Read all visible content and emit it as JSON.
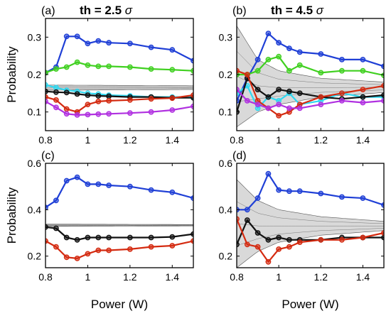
{
  "chart_data": [
    {
      "type": "line",
      "panel_label": "(a)",
      "title_text": "th = 2.5",
      "title_symbol": "σ",
      "ylabel": "Probability",
      "xlabel": "",
      "xlim": [
        0.8,
        1.5
      ],
      "ylim": [
        0.05,
        0.35
      ],
      "xticks": [
        0.8,
        1,
        1.2,
        1.4
      ],
      "yticks": [
        0.1,
        0.2,
        0.3
      ],
      "series": [
        {
          "color": "#1f3fd6",
          "x": [
            0.8,
            0.85,
            0.9,
            0.95,
            1.0,
            1.05,
            1.1,
            1.2,
            1.3,
            1.4,
            1.5
          ],
          "y": [
            0.205,
            0.22,
            0.302,
            0.302,
            0.283,
            0.29,
            0.285,
            0.283,
            0.273,
            0.266,
            0.237
          ]
        },
        {
          "color": "#40d020",
          "x": [
            0.8,
            0.85,
            0.9,
            0.95,
            1.0,
            1.05,
            1.1,
            1.2,
            1.3,
            1.4,
            1.5
          ],
          "y": [
            0.205,
            0.215,
            0.22,
            0.233,
            0.225,
            0.222,
            0.222,
            0.22,
            0.215,
            0.213,
            0.21
          ]
        },
        {
          "color": "#30d8f0",
          "x": [
            0.8,
            0.85,
            0.9,
            0.95,
            1.0,
            1.05,
            1.1,
            1.2,
            1.3,
            1.4,
            1.5
          ],
          "y": [
            0.172,
            0.165,
            0.158,
            0.155,
            0.15,
            0.148,
            0.145,
            0.143,
            0.14,
            0.14,
            0.14
          ]
        },
        {
          "color": "#111111",
          "x": [
            0.8,
            0.85,
            0.9,
            0.95,
            1.0,
            1.05,
            1.1,
            1.2,
            1.3,
            1.4,
            1.5
          ],
          "y": [
            0.155,
            0.153,
            0.152,
            0.148,
            0.145,
            0.143,
            0.142,
            0.14,
            0.14,
            0.138,
            0.138
          ]
        },
        {
          "color": "#d42a10",
          "x": [
            0.8,
            0.85,
            0.9,
            0.95,
            1.0,
            1.05,
            1.1,
            1.2,
            1.3,
            1.4,
            1.5
          ],
          "y": [
            0.14,
            0.132,
            0.108,
            0.1,
            0.12,
            0.128,
            0.13,
            0.132,
            0.135,
            0.137,
            0.145
          ]
        },
        {
          "color": "#b030e0",
          "x": [
            0.8,
            0.85,
            0.9,
            0.95,
            1.0,
            1.05,
            1.1,
            1.2,
            1.3,
            1.4,
            1.5
          ],
          "y": [
            0.128,
            0.112,
            0.095,
            0.092,
            0.093,
            0.094,
            0.095,
            0.097,
            0.1,
            0.105,
            0.115
          ]
        }
      ],
      "reference_band": {
        "x": [
          0.8,
          1.5
        ],
        "lower": [
          0.158,
          0.16
        ],
        "upper": [
          0.172,
          0.17
        ]
      }
    },
    {
      "type": "line",
      "panel_label": "(b)",
      "title_text": "th = 4.5",
      "title_symbol": "σ",
      "ylabel": "",
      "xlabel": "",
      "xlim": [
        0.8,
        1.5
      ],
      "ylim": [
        0.05,
        0.35
      ],
      "xticks": [
        0.8,
        1,
        1.2,
        1.4
      ],
      "yticks": [
        0.1,
        0.2,
        0.3
      ],
      "series": [
        {
          "color": "#1f3fd6",
          "x": [
            0.8,
            0.85,
            0.9,
            0.95,
            1.0,
            1.05,
            1.1,
            1.2,
            1.3,
            1.4,
            1.5
          ],
          "y": [
            0.13,
            0.19,
            0.24,
            0.31,
            0.285,
            0.27,
            0.26,
            0.255,
            0.24,
            0.24,
            0.222
          ]
        },
        {
          "color": "#40d020",
          "x": [
            0.8,
            0.85,
            0.9,
            0.95,
            1.0,
            1.05,
            1.1,
            1.2,
            1.3,
            1.4,
            1.5
          ],
          "y": [
            0.2,
            0.2,
            0.21,
            0.24,
            0.248,
            0.21,
            0.225,
            0.205,
            0.21,
            0.21,
            0.198
          ]
        },
        {
          "color": "#30d8f0",
          "x": [
            0.8,
            0.85,
            0.9,
            0.95,
            1.0,
            1.05,
            1.1,
            1.2,
            1.3,
            1.4,
            1.5
          ],
          "y": [
            0.15,
            0.17,
            0.11,
            0.14,
            0.13,
            0.15,
            0.12,
            0.13,
            0.15,
            0.14,
            0.14
          ]
        },
        {
          "color": "#111111",
          "x": [
            0.8,
            0.85,
            0.9,
            0.95,
            1.0,
            1.05,
            1.1,
            1.2,
            1.3,
            1.4,
            1.5
          ],
          "y": [
            0.1,
            0.19,
            0.16,
            0.14,
            0.16,
            0.155,
            0.15,
            0.14,
            0.135,
            0.14,
            0.145
          ]
        },
        {
          "color": "#d42a10",
          "x": [
            0.8,
            0.85,
            0.9,
            0.95,
            1.0,
            1.05,
            1.1,
            1.2,
            1.3,
            1.4,
            1.5
          ],
          "y": [
            0.21,
            0.2,
            0.13,
            0.11,
            0.09,
            0.1,
            0.12,
            0.14,
            0.15,
            0.16,
            0.17
          ]
        },
        {
          "color": "#b030e0",
          "x": [
            0.8,
            0.85,
            0.9,
            0.95,
            1.0,
            1.05,
            1.1,
            1.2,
            1.3,
            1.4,
            1.5
          ],
          "y": [
            0.16,
            0.13,
            0.12,
            0.11,
            0.12,
            0.11,
            0.11,
            0.12,
            0.13,
            0.125,
            0.13
          ]
        }
      ],
      "reference_band": {
        "x": [
          0.8,
          0.9,
          1.0,
          1.2,
          1.5
        ],
        "lower": [
          0.06,
          0.1,
          0.12,
          0.14,
          0.152
        ],
        "upper": [
          0.33,
          0.24,
          0.21,
          0.19,
          0.18
        ]
      }
    },
    {
      "type": "line",
      "panel_label": "(c)",
      "title_text": "",
      "title_symbol": "",
      "ylabel": "Probability",
      "xlabel": "Power (W)",
      "xlim": [
        0.8,
        1.5
      ],
      "ylim": [
        0.15,
        0.6
      ],
      "xticks": [
        0.8,
        1,
        1.2,
        1.4
      ],
      "yticks": [
        0.2,
        0.4,
        0.6
      ],
      "series": [
        {
          "color": "#1f3fd6",
          "x": [
            0.8,
            0.85,
            0.9,
            0.95,
            1.0,
            1.05,
            1.1,
            1.2,
            1.3,
            1.4,
            1.5
          ],
          "y": [
            0.41,
            0.44,
            0.525,
            0.54,
            0.51,
            0.51,
            0.505,
            0.5,
            0.485,
            0.475,
            0.45
          ]
        },
        {
          "color": "#111111",
          "x": [
            0.8,
            0.85,
            0.9,
            0.95,
            1.0,
            1.05,
            1.1,
            1.2,
            1.3,
            1.4,
            1.5
          ],
          "y": [
            0.325,
            0.32,
            0.28,
            0.27,
            0.28,
            0.28,
            0.28,
            0.28,
            0.28,
            0.283,
            0.295
          ]
        },
        {
          "color": "#d42a10",
          "x": [
            0.8,
            0.85,
            0.9,
            0.95,
            1.0,
            1.05,
            1.1,
            1.2,
            1.3,
            1.4,
            1.5
          ],
          "y": [
            0.265,
            0.24,
            0.195,
            0.19,
            0.21,
            0.225,
            0.225,
            0.23,
            0.24,
            0.245,
            0.265
          ]
        }
      ],
      "reference_band": {
        "x": [
          0.8,
          1.5
        ],
        "lower": [
          0.328,
          0.33
        ],
        "upper": [
          0.338,
          0.336
        ]
      }
    },
    {
      "type": "line",
      "panel_label": "(d)",
      "title_text": "",
      "title_symbol": "",
      "ylabel": "",
      "xlabel": "Power (W)",
      "xlim": [
        0.8,
        1.5
      ],
      "ylim": [
        0.15,
        0.6
      ],
      "xticks": [
        0.8,
        1,
        1.2,
        1.4
      ],
      "yticks": [
        0.2,
        0.4,
        0.6
      ],
      "series": [
        {
          "color": "#1f3fd6",
          "x": [
            0.8,
            0.85,
            0.9,
            0.95,
            1.0,
            1.05,
            1.1,
            1.2,
            1.3,
            1.4,
            1.5
          ],
          "y": [
            0.4,
            0.4,
            0.45,
            0.555,
            0.485,
            0.48,
            0.48,
            0.47,
            0.455,
            0.45,
            0.42
          ]
        },
        {
          "color": "#111111",
          "x": [
            0.8,
            0.85,
            0.9,
            0.95,
            1.0,
            1.05,
            1.1,
            1.2,
            1.3,
            1.4,
            1.5
          ],
          "y": [
            0.25,
            0.355,
            0.3,
            0.27,
            0.28,
            0.27,
            0.27,
            0.27,
            0.28,
            0.28,
            0.28
          ]
        },
        {
          "color": "#d42a10",
          "x": [
            0.8,
            0.85,
            0.9,
            0.95,
            1.0,
            1.05,
            1.1,
            1.2,
            1.3,
            1.4,
            1.5
          ],
          "y": [
            0.36,
            0.25,
            0.24,
            0.175,
            0.23,
            0.24,
            0.26,
            0.27,
            0.27,
            0.28,
            0.3
          ]
        }
      ],
      "reference_band": {
        "x": [
          0.8,
          0.9,
          1.0,
          1.2,
          1.5
        ],
        "lower": [
          0.15,
          0.22,
          0.26,
          0.29,
          0.31
        ],
        "upper": [
          0.53,
          0.44,
          0.4,
          0.37,
          0.35
        ]
      }
    }
  ]
}
